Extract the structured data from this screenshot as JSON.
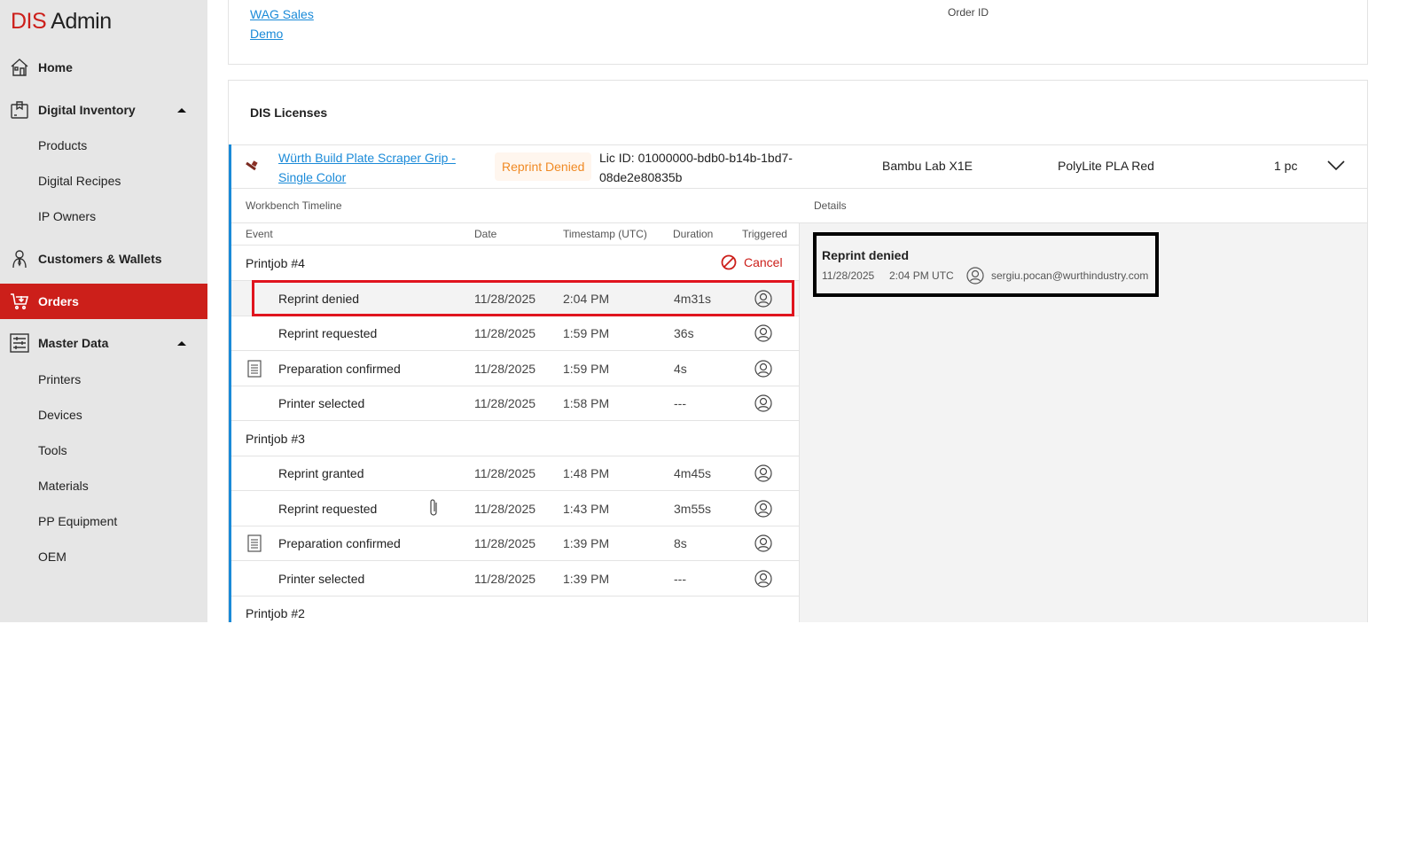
{
  "app": {
    "logo_brand": "DIS",
    "logo_rest": "Admin"
  },
  "sidebar": {
    "home": "Home",
    "digital_inventory": "Digital Inventory",
    "digital_inventory_items": [
      "Products",
      "Digital Recipes",
      "IP Owners"
    ],
    "customers": "Customers & Wallets",
    "orders": "Orders",
    "master_data": "Master Data",
    "master_data_items": [
      "Printers",
      "Devices",
      "Tools",
      "Materials",
      "PP Equipment",
      "OEM"
    ]
  },
  "order_card": {
    "links": [
      "WAG Sales",
      "Demo"
    ],
    "order_id_label": "Order ID"
  },
  "licenses": {
    "title": "DIS Licenses",
    "license": {
      "product_link": "Würth Build Plate Scraper Grip - Single Color",
      "status": "Reprint Denied",
      "status_color": "#f08a24",
      "lic_id_line1": "Lic ID: 01000000-bdb0-b14b-1bd7-",
      "lic_id_line2": "08de2e80835b",
      "printer": "Bambu Lab X1E",
      "material": "PolyLite PLA Red",
      "quantity": "1 pc"
    },
    "timeline_label": "Workbench Timeline",
    "details_label": "Details",
    "columns": {
      "event": "Event",
      "date": "Date",
      "timestamp": "Timestamp (UTC)",
      "duration": "Duration",
      "triggered": "Triggered"
    },
    "cancel_label": "Cancel",
    "rows": [
      {
        "group": "Printjob #4"
      },
      {
        "event": "Reprint denied",
        "date": "11/28/2025",
        "time": "2:04 PM",
        "duration": "4m31s",
        "highlight": true
      },
      {
        "event": "Reprint requested",
        "date": "11/28/2025",
        "time": "1:59 PM",
        "duration": "36s"
      },
      {
        "event": "Preparation confirmed",
        "date": "11/28/2025",
        "time": "1:59 PM",
        "duration": "4s",
        "icon": "document-icon"
      },
      {
        "event": "Printer selected",
        "date": "11/28/2025",
        "time": "1:58 PM",
        "duration": "---"
      },
      {
        "group": "Printjob #3"
      },
      {
        "event": "Reprint granted",
        "date": "11/28/2025",
        "time": "1:48 PM",
        "duration": "4m45s"
      },
      {
        "event": "Reprint requested",
        "date": "11/28/2025",
        "time": "1:43 PM",
        "duration": "3m55s",
        "attachment": true
      },
      {
        "event": "Preparation confirmed",
        "date": "11/28/2025",
        "time": "1:39 PM",
        "duration": "8s",
        "icon": "document-icon"
      },
      {
        "event": "Printer selected",
        "date": "11/28/2025",
        "time": "1:39 PM",
        "duration": "---"
      },
      {
        "group": "Printjob #2"
      }
    ],
    "detail": {
      "title": "Reprint denied",
      "date": "11/28/2025",
      "time": "2:04 PM UTC",
      "user": "sergiu.pocan@wurthindustry.com"
    }
  }
}
